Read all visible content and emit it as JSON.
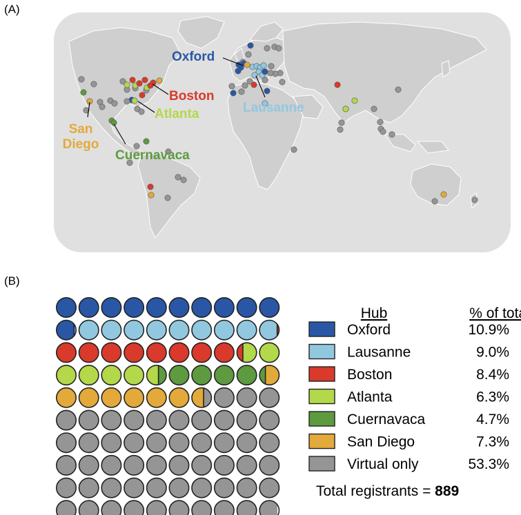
{
  "panel_a_label": "(A)",
  "panel_b_label": "(B)",
  "colors": {
    "oxford": "#2a57a5",
    "lausanne": "#92c8df",
    "boston": "#d93a2b",
    "atlanta": "#b3d84a",
    "cuernavaca": "#5d9a40",
    "san_diego": "#e3a93a",
    "virtual": "#959595",
    "map_ocean": "#e0e0e0",
    "map_land": "#cfcfcf",
    "map_border": "#ffffff"
  },
  "map_hubs": [
    {
      "key": "oxford",
      "label": "Oxford"
    },
    {
      "key": "lausanne",
      "label": "Lausanne"
    },
    {
      "key": "boston",
      "label": "Boston"
    },
    {
      "key": "atlanta",
      "label": "Atlanta"
    },
    {
      "key": "san_diego",
      "label": "San\nDiego"
    },
    {
      "key": "cuernavaca",
      "label": "Cuernavaca"
    }
  ],
  "chart_data": {
    "type": "waffle",
    "grid": {
      "rows": 10,
      "cols": 10
    },
    "total_label": "Total registrants = ",
    "total_value": "889",
    "legend_headers": {
      "hub": "Hub",
      "pct": "% of total"
    },
    "series": [
      {
        "key": "oxford",
        "name": "Oxford",
        "percent": 10.9,
        "percent_label": "10.9%"
      },
      {
        "key": "lausanne",
        "name": "Lausanne",
        "percent": 9.0,
        "percent_label": "9.0%"
      },
      {
        "key": "boston",
        "name": "Boston",
        "percent": 8.4,
        "percent_label": "8.4%"
      },
      {
        "key": "atlanta",
        "name": "Atlanta",
        "percent": 6.3,
        "percent_label": "6.3%"
      },
      {
        "key": "cuernavaca",
        "name": "Cuernavaca",
        "percent": 4.7,
        "percent_label": "4.7%"
      },
      {
        "key": "san_diego",
        "name": "San Diego",
        "percent": 7.3,
        "percent_label": "7.3%"
      },
      {
        "key": "virtual",
        "name": "Virtual only",
        "percent": 53.3,
        "percent_label": "53.3%"
      }
    ]
  }
}
